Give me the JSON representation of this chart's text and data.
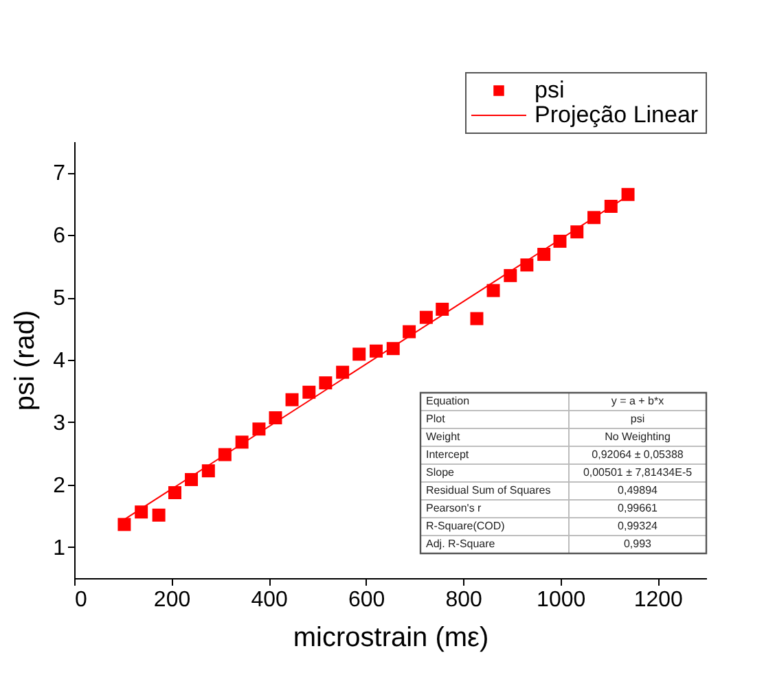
{
  "chart_data": {
    "type": "scatter",
    "xlabel": "microstrain (mε)",
    "ylabel": "psi (rad)",
    "xlim": [
      0,
      1300
    ],
    "xticks": [
      0,
      200,
      400,
      600,
      800,
      1000,
      1200
    ],
    "ylim": [
      0.5,
      7.5
    ],
    "yticks": [
      1,
      2,
      3,
      4,
      5,
      6,
      7
    ],
    "grid": false,
    "legend": "top right",
    "marker": "square",
    "series": [
      {
        "name": "psi",
        "color": "#ff0000",
        "x": [
          103,
          138,
          174,
          207,
          241,
          276,
          310,
          345,
          380,
          414,
          448,
          483,
          517,
          552,
          586,
          621,
          656,
          689,
          724,
          757,
          828,
          862,
          897,
          931,
          966,
          999,
          1034,
          1069,
          1104,
          1139
        ],
        "values": [
          1.36,
          1.56,
          1.51,
          1.87,
          2.08,
          2.22,
          2.48,
          2.68,
          2.89,
          3.07,
          3.36,
          3.48,
          3.63,
          3.8,
          4.09,
          4.14,
          4.18,
          4.45,
          4.68,
          4.81,
          4.66,
          5.11,
          5.35,
          5.52,
          5.69,
          5.9,
          6.05,
          6.28,
          6.46,
          6.65
        ]
      },
      {
        "name": "Projeção Linear",
        "type": "line",
        "color": "#ff0000",
        "marker": "none",
        "line_style": "solid",
        "x": [
          103,
          1139
        ],
        "values": [
          1.44,
          6.63
        ]
      }
    ],
    "annotations": [
      "Equation",
      "y = a + b*x",
      "Plot",
      "psi",
      "Weight",
      "No Weighting",
      "Intercept",
      "0,92064 ± 0,05388",
      "Slope",
      "0,00501 ± 7,81434E-5",
      "Residual Sum of Squares",
      "0,49894",
      "Pearson's r",
      "0,99661",
      "R-Square(COD)",
      "0,99324",
      "Adj. R-Square",
      "0,993"
    ]
  }
}
